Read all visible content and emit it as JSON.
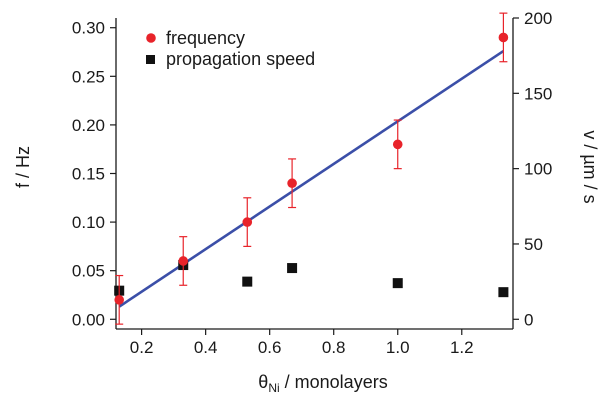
{
  "chart_data": {
    "type": "scatter",
    "x_axis": {
      "label_main": "θ",
      "label_sub": "Ni",
      "label_rest": " / monolayers",
      "range": [
        0.12,
        1.36
      ],
      "ticks": [
        0.2,
        0.4,
        0.6,
        0.8,
        1.0,
        1.2
      ],
      "tick_labels": [
        "0.2",
        "0.4",
        "0.6",
        "0.8",
        "1.0",
        "1.2"
      ]
    },
    "y_left": {
      "label": "f / Hz",
      "range": [
        -0.01,
        0.31
      ],
      "ticks": [
        0.0,
        0.05,
        0.1,
        0.15,
        0.2,
        0.25,
        0.3
      ],
      "tick_labels": [
        "0.00",
        "0.05",
        "0.10",
        "0.15",
        "0.20",
        "0.25",
        "0.30"
      ]
    },
    "y_right": {
      "label": "v / µm / s",
      "range": [
        -6.4516,
        200
      ],
      "ticks": [
        0,
        50,
        100,
        150,
        200
      ],
      "tick_labels": [
        "0",
        "50",
        "100",
        "150",
        "200"
      ]
    },
    "legend": {
      "position": "top-left",
      "entries": [
        "frequency",
        "propagation speed"
      ]
    },
    "series": [
      {
        "name": "frequency",
        "axis": "left",
        "marker": "circle",
        "color": "#e8232a",
        "points": [
          {
            "x": 0.13,
            "y": 0.02,
            "err": 0.025
          },
          {
            "x": 0.33,
            "y": 0.06,
            "err": 0.025
          },
          {
            "x": 0.53,
            "y": 0.1,
            "err": 0.025
          },
          {
            "x": 0.67,
            "y": 0.14,
            "err": 0.025
          },
          {
            "x": 1.0,
            "y": 0.18,
            "err": 0.025
          },
          {
            "x": 1.33,
            "y": 0.29,
            "err": 0.025
          }
        ]
      },
      {
        "name": "propagation speed",
        "axis": "right",
        "marker": "square",
        "color": "#111111",
        "points": [
          {
            "x": 0.13,
            "y": 19
          },
          {
            "x": 0.33,
            "y": 36
          },
          {
            "x": 0.53,
            "y": 25
          },
          {
            "x": 0.67,
            "y": 34
          },
          {
            "x": 1.0,
            "y": 24
          },
          {
            "x": 1.33,
            "y": 18
          }
        ]
      }
    ],
    "fit_line": {
      "axis": "left",
      "color": "#3b4fa8",
      "x_start": 0.13,
      "y_start": 0.013,
      "x_end": 1.33,
      "y_end": 0.276
    }
  }
}
